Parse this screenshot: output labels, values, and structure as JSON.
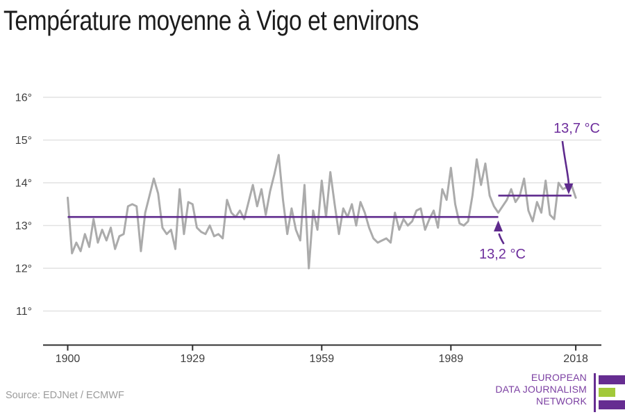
{
  "title": "Température moyenne à Vigo et environs",
  "source": "Source: EDJNet / ECMWF",
  "colors": {
    "line": "#ababab",
    "purple": "#5e2a8d",
    "annotation": "#6d2d9c",
    "grid": "#e2e2e2",
    "axis": "#2f2f2f",
    "tick_text": "#3d3d3d",
    "logo_purple": "#662d91",
    "logo_green": "#a2c93a",
    "logo_text": "#7b3fa2"
  },
  "chart_data": {
    "type": "line",
    "title": "Température moyenne à Vigo et environs",
    "unit": "°C",
    "x_years": {
      "start": 1900,
      "end": 2018,
      "step": 1
    },
    "values": [
      13.65,
      12.35,
      12.6,
      12.4,
      12.8,
      12.5,
      13.15,
      12.6,
      12.9,
      12.65,
      12.95,
      12.45,
      12.75,
      12.8,
      13.45,
      13.5,
      13.45,
      12.4,
      13.3,
      13.7,
      14.1,
      13.75,
      12.95,
      12.8,
      12.9,
      12.45,
      13.85,
      12.8,
      13.55,
      13.5,
      12.95,
      12.85,
      12.8,
      13.0,
      12.75,
      12.8,
      12.7,
      13.6,
      13.3,
      13.2,
      13.35,
      13.15,
      13.55,
      13.95,
      13.45,
      13.85,
      13.25,
      13.8,
      14.2,
      14.65,
      13.6,
      12.8,
      13.4,
      12.9,
      12.65,
      13.95,
      12.0,
      13.35,
      12.9,
      14.05,
      13.2,
      14.25,
      13.5,
      12.8,
      13.4,
      13.2,
      13.5,
      13.0,
      13.55,
      13.3,
      12.95,
      12.7,
      12.6,
      12.65,
      12.7,
      12.6,
      13.3,
      12.9,
      13.15,
      13.0,
      13.1,
      13.35,
      13.4,
      12.9,
      13.15,
      13.35,
      12.95,
      13.85,
      13.6,
      14.35,
      13.5,
      13.05,
      13.0,
      13.1,
      13.7,
      14.55,
      13.95,
      14.45,
      13.7,
      13.45,
      13.3,
      13.45,
      13.6,
      13.85,
      13.55,
      13.7,
      14.1,
      13.35,
      13.1,
      13.55,
      13.3,
      14.05,
      13.25,
      13.15,
      14.0,
      13.85,
      13.9,
      13.95,
      13.65
    ],
    "y_ticks": [
      16,
      15,
      14,
      13,
      12,
      11
    ],
    "y_tick_suffix": "°",
    "x_ticks": [
      1900,
      1929,
      1959,
      1989,
      2018
    ],
    "ylim": [
      11,
      16
    ],
    "grid": true,
    "legend": "none",
    "reference_lines": [
      {
        "label": "13,2 °C",
        "value": 13.2,
        "from_year": 1900,
        "to_year": 2000
      },
      {
        "label": "13,7 °C",
        "value": 13.7,
        "from_year": 2000,
        "to_year": 2017
      }
    ]
  },
  "logo": {
    "lines": [
      "EUROPEAN",
      "DATA JOURNALISM",
      "NETWORK"
    ]
  }
}
